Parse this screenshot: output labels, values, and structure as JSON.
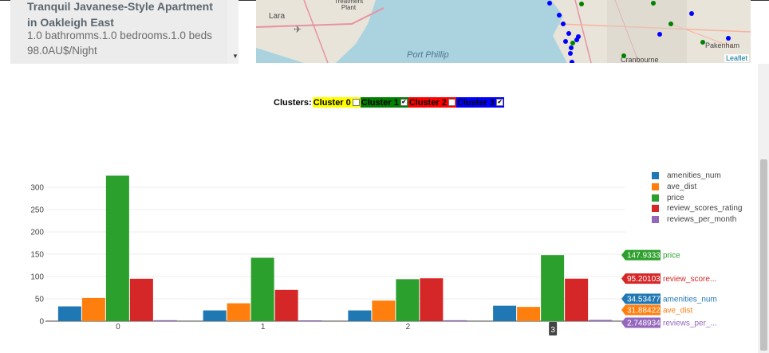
{
  "listing": {
    "title": "Tranquil Javanese-Style Apartment in Oakleigh East",
    "details": "1.0 bathromms.1.0 bedrooms.1.0 beds",
    "price": "98.0AU$/Night"
  },
  "map": {
    "labels": {
      "lara": "Lara",
      "plant": "Treatment Plant",
      "bay": "Port Phillip",
      "cranbourne": "Cranbourne",
      "pakenham": "Pakenham"
    },
    "attribution": "Leaflet"
  },
  "clusters": {
    "title": "Clusters:",
    "items": [
      {
        "label": "Cluster 0",
        "color": "#ffff00",
        "text_color": "#000000",
        "checked": false
      },
      {
        "label": "Cluster 1",
        "color": "#008000",
        "text_color": "#000000",
        "checked": true
      },
      {
        "label": "Cluster 2",
        "color": "#ff0000",
        "text_color": "#000000",
        "checked": false
      },
      {
        "label": "Cluster 3",
        "color": "#0000ff",
        "text_color": "#000000",
        "checked": true
      }
    ]
  },
  "chart_data": {
    "type": "bar",
    "categories": [
      "0",
      "1",
      "2",
      "3"
    ],
    "ylim": [
      0,
      340
    ],
    "yticks": [
      0,
      50,
      100,
      150,
      200,
      250,
      300
    ],
    "grid": true,
    "legend_position": "top-right",
    "series": [
      {
        "name": "amenities_num",
        "color": "#1f77b4",
        "values": [
          33,
          24,
          24,
          34.53477
        ]
      },
      {
        "name": "ave_dist",
        "color": "#ff7f0e",
        "values": [
          52,
          40,
          46,
          31.88422
        ]
      },
      {
        "name": "price",
        "color": "#2ca02c",
        "values": [
          326,
          142,
          94,
          147.9333
        ]
      },
      {
        "name": "review_scores_rating",
        "color": "#d62728",
        "values": [
          95,
          70,
          96,
          95.20103
        ]
      },
      {
        "name": "reviews_per_month",
        "color": "#9467bd",
        "values": [
          2.1,
          1.4,
          2.0,
          2.748934
        ]
      }
    ],
    "hover": {
      "category": "3",
      "labels": [
        {
          "value": "147.9333",
          "name": "price",
          "color": "#2ca02c"
        },
        {
          "value": "95.20103",
          "name": "review_score...",
          "color": "#d62728"
        },
        {
          "value": "34.53477",
          "name": "amenities_num",
          "color": "#1f77b4"
        },
        {
          "value": "31.88422",
          "name": "ave_dist",
          "color": "#ff7f0e"
        },
        {
          "value": "2.748934",
          "name": "reviews_per_...",
          "color": "#9467bd"
        }
      ]
    }
  }
}
